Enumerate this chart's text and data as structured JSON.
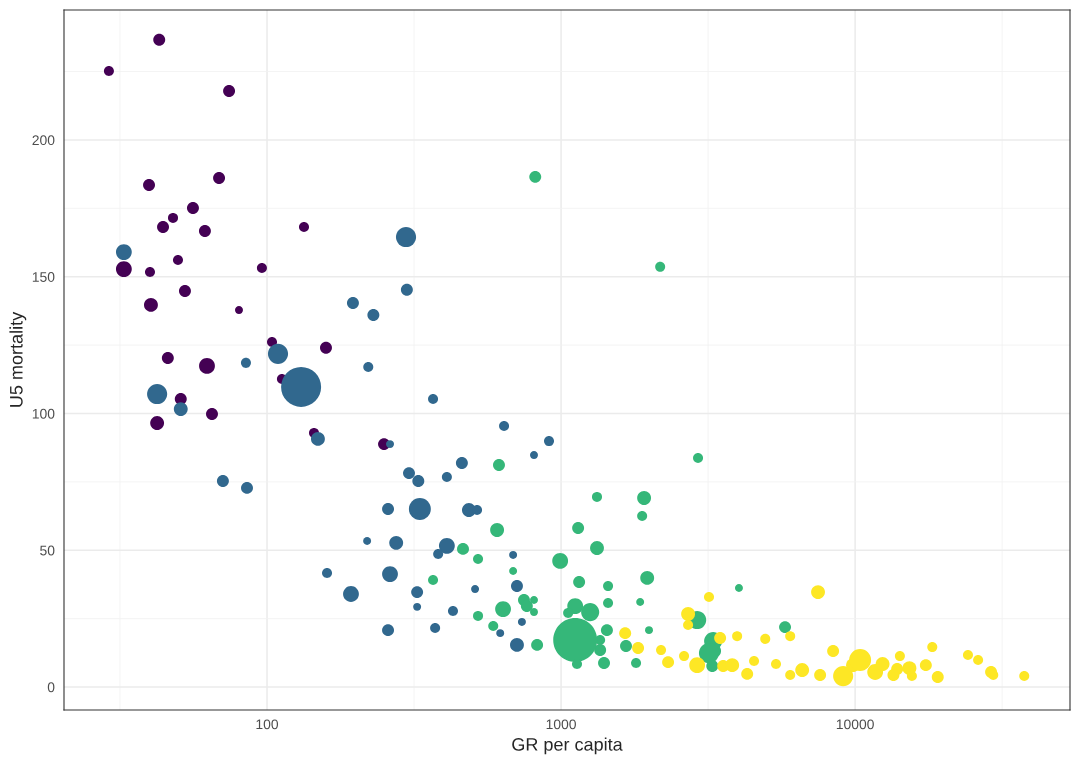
{
  "chart_data": {
    "type": "bubble",
    "xlabel": "GR per capita",
    "ylabel": "U5 mortality",
    "log": "x",
    "grid": true,
    "legend": false,
    "xlim": [
      20.4,
      53800
    ],
    "xticks": [
      100,
      1000,
      10000
    ],
    "ylim": [
      -8.4,
      247.5
    ],
    "yticks": [
      0,
      50,
      100,
      150,
      200
    ],
    "series": [
      {
        "color": "#440154",
        "x": [
          29.0,
          43.0,
          74.3,
          39.7,
          68.7,
          47.9,
          44.3,
          56.0,
          61.5,
          49.8,
          40.0,
          32.6,
          52.6,
          40.3,
          96.1,
          133.6,
          80.3,
          104,
          158.7,
          46.0,
          62.5,
          50.9,
          65.0,
          42.3,
          112.4,
          144.5,
          250
        ],
        "values": [
          225.2,
          236.6,
          217.9,
          183.5,
          186.1,
          171.5,
          168.2,
          175.1,
          166.7,
          156.1,
          151.7,
          152.8,
          144.8,
          139.7,
          153.2,
          168.2,
          137.8,
          126.1,
          124.0,
          120.3,
          117.4,
          105.3,
          99.8,
          96.5,
          112.6,
          92.9,
          88.8
        ],
        "sizes": [
          0.052,
          0.074,
          0.074,
          0.074,
          0.074,
          0.052,
          0.074,
          0.074,
          0.074,
          0.052,
          0.052,
          0.13,
          0.074,
          0.1,
          0.052,
          0.052,
          0.033,
          0.052,
          0.074,
          0.074,
          0.13,
          0.074,
          0.074,
          0.1,
          0.052,
          0.052,
          0.074
        ]
      },
      {
        "color": "#31688e",
        "x": [
          32.6,
          297,
          299,
          196,
          230,
          109,
          130.6,
          84.8,
          221,
          42.3,
          50.9,
          149,
          367,
          262,
          640,
          910,
          809,
          70.8,
          85.5,
          304,
          327,
          460,
          409,
          258,
          331,
          486,
          518,
          275,
          219,
          409,
          382,
          687,
          160,
          262,
          324,
          193,
          510,
          708,
          429,
          324,
          736,
          621,
          258,
          373,
          708
        ],
        "values": [
          159.0,
          164.5,
          145.2,
          140.4,
          136.0,
          121.8,
          109.7,
          118.5,
          117.0,
          107.1,
          101.6,
          90.7,
          105.3,
          88.8,
          95.4,
          89.9,
          84.8,
          75.3,
          72.8,
          78.2,
          75.3,
          81.9,
          76.8,
          65.1,
          65.1,
          64.7,
          64.7,
          52.7,
          53.4,
          51.6,
          48.6,
          48.3,
          41.7,
          41.3,
          34.7,
          34.0,
          35.8,
          36.9,
          27.8,
          29.3,
          23.8,
          19.7,
          20.8,
          21.6,
          15.4
        ],
        "sizes": [
          0.13,
          0.21,
          0.074,
          0.074,
          0.074,
          0.21,
          0.83,
          0.052,
          0.052,
          0.21,
          0.1,
          0.1,
          0.052,
          0.033,
          0.052,
          0.052,
          0.033,
          0.074,
          0.074,
          0.074,
          0.074,
          0.074,
          0.052,
          0.074,
          0.25,
          0.1,
          0.052,
          0.1,
          0.033,
          0.13,
          0.052,
          0.033,
          0.052,
          0.13,
          0.074,
          0.13,
          0.033,
          0.074,
          0.052,
          0.033,
          0.033,
          0.033,
          0.074,
          0.052,
          0.1
        ]
      },
      {
        "color": "#35b779",
        "x": [
          817,
          2173,
          2923,
          615,
          1916,
          1325,
          1887,
          1143,
          606,
          1325,
          993,
          522,
          464,
          687,
          367,
          1963,
          1152,
          1445,
          4027,
          748,
          809,
          765,
          1858,
          1445,
          1117,
          1256,
          1057,
          635,
          522,
          809,
          2903,
          1432,
          1991,
          588,
          1358,
          1358,
          1400,
          1117,
          1133,
          1799,
          1663,
          829,
          3290,
          3315,
          3185,
          5777,
          3268
        ],
        "values": [
          186.5,
          153.6,
          83.7,
          81.2,
          69.1,
          69.5,
          62.5,
          58.1,
          57.4,
          50.8,
          46.1,
          46.8,
          50.5,
          42.4,
          39.1,
          39.9,
          38.4,
          36.9,
          36.2,
          31.8,
          31.8,
          29.6,
          31.1,
          30.7,
          29.6,
          27.4,
          27.1,
          28.5,
          26.0,
          27.4,
          24.5,
          20.8,
          20.8,
          22.3,
          17.2,
          13.5,
          8.8,
          17.2,
          8.4,
          8.8,
          15.0,
          15.4,
          16.8,
          13.2,
          12.4,
          21.9,
          7.7
        ],
        "sizes": [
          0.074,
          0.052,
          0.052,
          0.074,
          0.1,
          0.052,
          0.052,
          0.074,
          0.1,
          0.1,
          0.13,
          0.052,
          0.074,
          0.033,
          0.052,
          0.1,
          0.074,
          0.052,
          0.033,
          0.074,
          0.033,
          0.074,
          0.033,
          0.052,
          0.13,
          0.17,
          0.052,
          0.13,
          0.052,
          0.033,
          0.17,
          0.074,
          0.033,
          0.052,
          0.052,
          0.074,
          0.074,
          1,
          0.052,
          0.052,
          0.074,
          0.074,
          0.17,
          0.1,
          0.21,
          0.074,
          0.074
        ]
      },
      {
        "color": "#fde725",
        "x": [
          3185,
          7480,
          2704,
          2704,
          1652,
          3475,
          3970,
          4948,
          6015,
          1828,
          2188,
          2312,
          2620,
          2903,
          3559,
          3819,
          4532,
          5383,
          4295,
          6015,
          6607,
          7603,
          8418,
          9106,
          9840,
          10400,
          11700,
          12400,
          13900,
          14200,
          15300,
          15600,
          13500,
          17400,
          18300,
          19100,
          24200,
          26200,
          29000,
          29500,
          37600
        ],
        "values": [
          32.9,
          34.7,
          26.7,
          22.7,
          19.7,
          17.9,
          18.6,
          17.6,
          18.6,
          14.3,
          13.5,
          9.1,
          11.3,
          8.0,
          7.7,
          8.0,
          9.5,
          8.4,
          4.8,
          4.4,
          6.2,
          4.4,
          13.2,
          4.0,
          8.0,
          9.9,
          5.5,
          8.4,
          6.6,
          11.3,
          6.9,
          4.0,
          4.4,
          8.0,
          14.6,
          3.7,
          11.7,
          9.9,
          5.5,
          4.4,
          4.0
        ],
        "sizes": [
          0.052,
          0.1,
          0.1,
          0.052,
          0.074,
          0.074,
          0.052,
          0.052,
          0.052,
          0.074,
          0.052,
          0.074,
          0.052,
          0.13,
          0.074,
          0.1,
          0.052,
          0.052,
          0.074,
          0.052,
          0.1,
          0.074,
          0.074,
          0.21,
          0.1,
          0.25,
          0.13,
          0.1,
          0.074,
          0.052,
          0.1,
          0.052,
          0.074,
          0.074,
          0.052,
          0.074,
          0.052,
          0.052,
          0.074,
          0.052,
          0.052
        ]
      }
    ]
  }
}
